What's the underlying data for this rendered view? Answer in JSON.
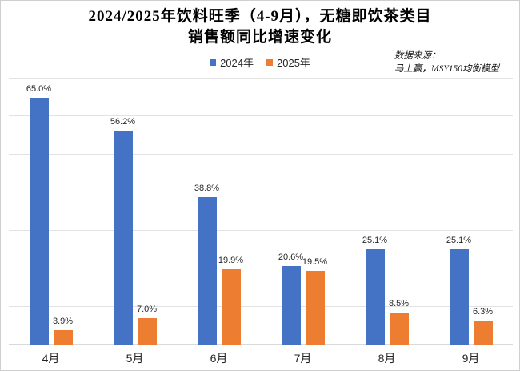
{
  "title": {
    "line1": "2024/2025年饮料旺季（4-9月），无糖即饮茶类目",
    "line2": "销售额同比增速变化"
  },
  "source": {
    "line1": "数据来源：",
    "line2": "马上赢，MSY150均衡模型"
  },
  "colors": {
    "series_2024": "#4472C4",
    "series_2025": "#ED7D31",
    "gridline": "#E2E2E2",
    "background": "#FFFFFF"
  },
  "chart_data": {
    "type": "bar",
    "title": "2024/2025年饮料旺季（4-9月），无糖即饮茶类目 销售额同比增速变化",
    "categories": [
      "4月",
      "5月",
      "6月",
      "7月",
      "8月",
      "9月"
    ],
    "series": [
      {
        "name": "2024年",
        "color": "#4472C4",
        "values": [
          65.0,
          56.2,
          38.8,
          20.6,
          25.1,
          25.1
        ]
      },
      {
        "name": "2025年",
        "color": "#ED7D31",
        "values": [
          3.9,
          7.0,
          19.9,
          19.5,
          8.5,
          6.3
        ]
      }
    ],
    "value_suffix": "%",
    "data_labels": true,
    "ylim": [
      0,
      70
    ],
    "grid_step": 10,
    "grid": true,
    "y_axis_labels": false,
    "legend_position": "top-center",
    "xlabel": "",
    "ylabel": ""
  }
}
